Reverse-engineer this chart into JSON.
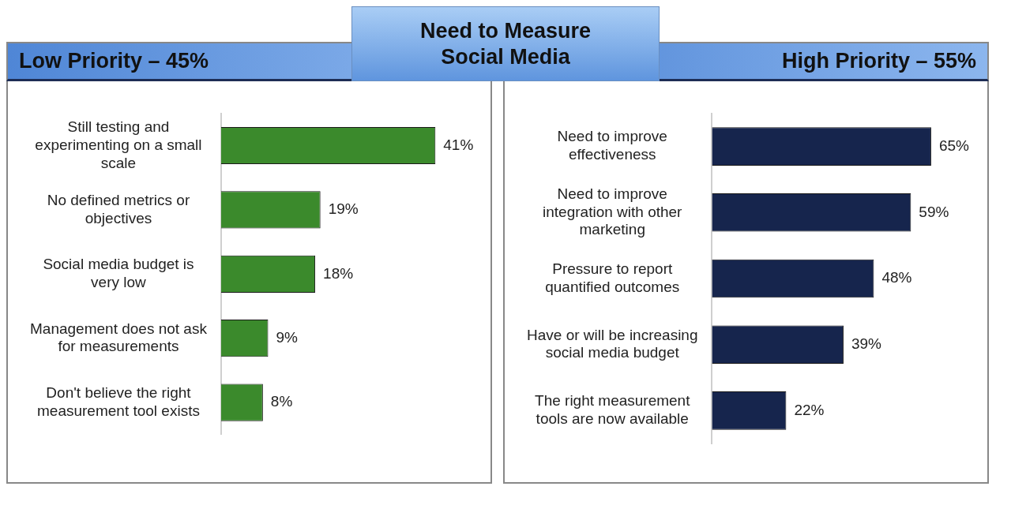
{
  "chart_data": [
    {
      "type": "bar",
      "orientation": "horizontal",
      "title": "Low Priority – 45%",
      "annotations": [
        "Need to Measure Social Media"
      ],
      "categories": [
        "Still testing and experimenting on a small scale",
        "No defined metrics or objectives",
        "Social media budget is very low",
        "Management does not ask for measurements",
        "Don't believe the right measurement tool exists"
      ],
      "values": [
        41,
        19,
        18,
        9,
        8
      ],
      "value_labels": [
        "41%",
        "19%",
        "18%",
        "9%",
        "8%"
      ],
      "color": "#3b8a2c"
    },
    {
      "type": "bar",
      "orientation": "horizontal",
      "title": "High Priority – 55%",
      "categories": [
        "Need to improve effectiveness",
        "Need to improve integration with other marketing",
        "Pressure to report quantified outcomes",
        "Have or will be increasing social media budget",
        "The right measurement tools are now available"
      ],
      "values": [
        65,
        59,
        48,
        39,
        22
      ],
      "value_labels": [
        "65%",
        "59%",
        "48%",
        "39%",
        "22%"
      ],
      "color": "#16254d"
    }
  ]
}
